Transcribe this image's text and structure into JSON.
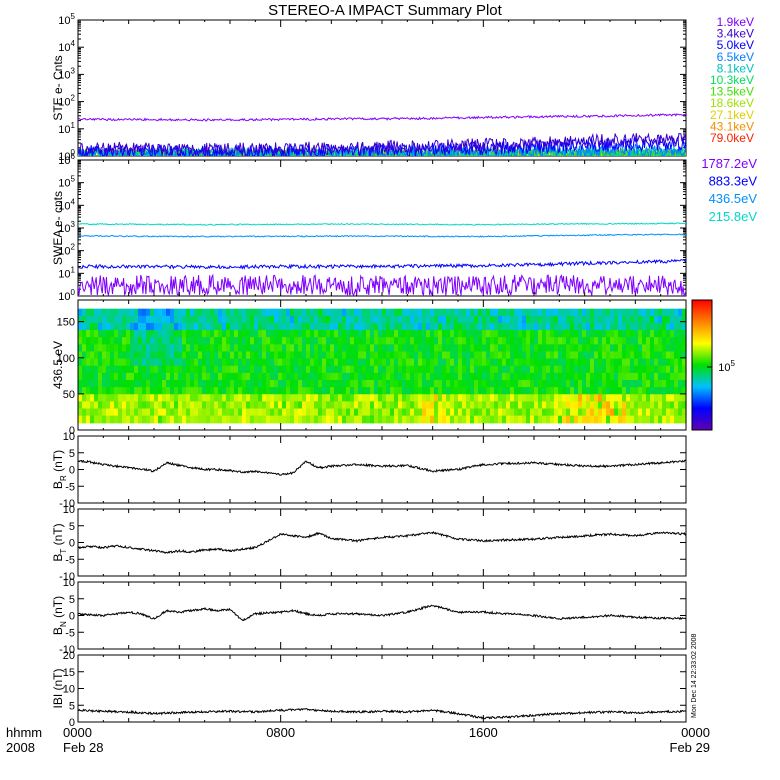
{
  "title": "STEREO-A IMPACT Summary Plot",
  "footer": {
    "left_line1": "hhmm",
    "left_line2": "2008",
    "stamp": "Mon Dec 14 22:33:02 2008"
  },
  "x_axis": {
    "ticks": [
      {
        "time": "0000",
        "date": "Feb 28",
        "hour": 0
      },
      {
        "time": "0800",
        "date": "",
        "hour": 8
      },
      {
        "time": "1600",
        "date": "",
        "hour": 16
      },
      {
        "time": "0000",
        "date": "Feb 29",
        "hour": 24
      }
    ]
  },
  "chart_data": [
    {
      "type": "line",
      "panel": "ste",
      "ylabel": "STE e- Cnts",
      "yscale": "log",
      "ylim": [
        1,
        100000
      ],
      "yticks": [
        "10^0",
        "10^1",
        "10^2",
        "10^3",
        "10^4",
        "10^5"
      ],
      "legend_placement": "right",
      "series": [
        {
          "name": "1.9keV",
          "color": "#7f00ff",
          "values": [
            22,
            22,
            21,
            22,
            23,
            24,
            26,
            28,
            30,
            33
          ]
        },
        {
          "name": "3.4keV",
          "color": "#3a00d0",
          "values": [
            1.8,
            1.9,
            1.7,
            1.8,
            2.0,
            2.2,
            2.5,
            3.0,
            3.8,
            4.5
          ]
        },
        {
          "name": "5.0keV",
          "color": "#0000ff",
          "values": [
            1.4,
            1.5,
            1.4,
            1.5,
            1.6,
            1.7,
            1.9,
            2.2,
            2.6,
            3.0
          ]
        },
        {
          "name": "6.5keV",
          "color": "#0080ff",
          "values": [
            1.2,
            1.2,
            1.2,
            1.2,
            1.3,
            1.3,
            1.4,
            1.5,
            1.6,
            1.7
          ]
        },
        {
          "name": "8.1keV",
          "color": "#00c0c0",
          "values": [
            1.1,
            1.1,
            1.1,
            1.1,
            1.1,
            1.2,
            1.2,
            1.2,
            1.3,
            1.3
          ]
        },
        {
          "name": "10.3keV",
          "color": "#00e060",
          "values": [
            1.05,
            1.05,
            1.05,
            1.05,
            1.05,
            1.1,
            1.1,
            1.1,
            1.1,
            1.1
          ]
        },
        {
          "name": "13.5keV",
          "color": "#40e000",
          "values": [
            1.02,
            1.02,
            1.02,
            1.02,
            1.02,
            1.02,
            1.02,
            1.02,
            1.02,
            1.02
          ]
        },
        {
          "name": "18.6keV",
          "color": "#a0e000",
          "values": [
            1.0,
            1.0,
            1.0,
            1.0,
            1.0,
            1.0,
            1.0,
            1.0,
            1.0,
            1.0
          ]
        },
        {
          "name": "27.1keV",
          "color": "#e0d000",
          "values": [
            1.0,
            1.0,
            1.0,
            1.0,
            1.0,
            1.0,
            1.0,
            1.0,
            1.0,
            1.0
          ]
        },
        {
          "name": "43.1keV",
          "color": "#f09000",
          "values": [
            1.0,
            1.0,
            1.0,
            1.0,
            1.0,
            1.0,
            1.0,
            1.0,
            1.0,
            1.0
          ]
        },
        {
          "name": "79.0keV",
          "color": "#ff2000",
          "values": [
            1.0,
            1.0,
            1.0,
            1.0,
            1.0,
            1.0,
            1.0,
            1.0,
            1.0,
            1.0
          ]
        }
      ]
    },
    {
      "type": "line",
      "panel": "swea",
      "ylabel": "SWEA e- cnts",
      "yscale": "log",
      "ylim": [
        1,
        1000000
      ],
      "yticks": [
        "10^0",
        "10^1",
        "10^2",
        "10^3",
        "10^4",
        "10^5",
        "10^6"
      ],
      "legend_placement": "right",
      "series": [
        {
          "name": "1787.2eV",
          "color": "#8000ff",
          "values": [
            3,
            3,
            3,
            3,
            3,
            3,
            3,
            3,
            3,
            3
          ]
        },
        {
          "name": "883.3eV",
          "color": "#0000ff",
          "values": [
            20,
            20,
            19,
            20,
            20,
            21,
            22,
            25,
            30,
            35
          ]
        },
        {
          "name": "436.5eV",
          "color": "#0090ff",
          "values": [
            450,
            430,
            420,
            430,
            440,
            430,
            420,
            460,
            500,
            520
          ]
        },
        {
          "name": "215.8eV",
          "color": "#00d8c8",
          "values": [
            1500,
            1450,
            1400,
            1450,
            1500,
            1450,
            1400,
            1500,
            1550,
            1600
          ]
        }
      ]
    },
    {
      "type": "heatmap",
      "panel": "pad",
      "ylabel": "436.5 eV",
      "ylim": [
        0,
        180
      ],
      "yticks": [
        0,
        50,
        100,
        150
      ],
      "colorbar_label": "10^5",
      "colorbar_colors": [
        "#6000b0",
        "#0000ff",
        "#00c0ff",
        "#00e000",
        "#ffff00",
        "#ff8000",
        "#ff0000"
      ]
    },
    {
      "type": "line",
      "panel": "br",
      "ylabel": "B_R (nT)",
      "ylim": [
        -10,
        10
      ],
      "yticks": [
        -10,
        -5,
        0,
        5,
        10
      ],
      "series": [
        {
          "name": "",
          "color": "#000000",
          "x": [
            0,
            0.5,
            1,
            1.5,
            2,
            2.5,
            3,
            3.5,
            4,
            4.5,
            5,
            5.5,
            6,
            6.5,
            7,
            7.5,
            8,
            8.5,
            9,
            9.5,
            10,
            11,
            12,
            13,
            14,
            15,
            16,
            17,
            18,
            19,
            20,
            21,
            22,
            23,
            24
          ],
          "values": [
            2.5,
            2.2,
            1.5,
            1.0,
            0.5,
            0.2,
            -0.5,
            2.0,
            1.2,
            0.5,
            0.0,
            0.0,
            -0.3,
            -0.8,
            -0.5,
            -1.0,
            -1.5,
            -1.0,
            2.5,
            0.5,
            1.0,
            1.5,
            1.0,
            1.2,
            -0.5,
            0.0,
            1.5,
            1.8,
            2.0,
            1.5,
            1.0,
            1.0,
            1.5,
            2.0,
            2.5
          ]
        }
      ]
    },
    {
      "type": "line",
      "panel": "bt",
      "ylabel": "B_T (nT)",
      "ylim": [
        -10,
        10
      ],
      "yticks": [
        -10,
        -5,
        0,
        5,
        10
      ],
      "series": [
        {
          "name": "",
          "color": "#000000",
          "x": [
            0,
            0.5,
            1,
            1.5,
            2,
            2.5,
            3,
            3.5,
            4,
            4.5,
            5,
            5.5,
            6,
            6.5,
            7,
            7.5,
            8,
            8.5,
            9,
            9.5,
            10,
            11,
            12,
            13,
            14,
            15,
            16,
            17,
            18,
            19,
            20,
            21,
            22,
            23,
            24
          ],
          "values": [
            -1.5,
            -1.2,
            -1.5,
            -1.0,
            -1.5,
            -2.0,
            -2.5,
            -3.0,
            -2.5,
            -2.8,
            -2.2,
            -2.0,
            -2.5,
            -2.0,
            -1.5,
            0.5,
            2.5,
            2.0,
            1.5,
            2.8,
            1.2,
            0.5,
            1.5,
            2.0,
            3.0,
            1.0,
            0.5,
            0.8,
            1.0,
            1.5,
            2.0,
            2.5,
            2.0,
            3.0,
            2.5
          ]
        }
      ]
    },
    {
      "type": "line",
      "panel": "bn",
      "ylabel": "B_N (nT)",
      "ylim": [
        -10,
        10
      ],
      "yticks": [
        -10,
        -5,
        0,
        5,
        10
      ],
      "series": [
        {
          "name": "",
          "color": "#000000",
          "x": [
            0,
            0.5,
            1,
            1.5,
            2,
            2.5,
            3,
            3.5,
            4,
            4.5,
            5,
            5.5,
            6,
            6.5,
            7,
            7.5,
            8,
            8.5,
            9,
            9.5,
            10,
            11,
            12,
            13,
            14,
            15,
            16,
            17,
            18,
            19,
            20,
            21,
            22,
            23,
            24
          ],
          "values": [
            0.5,
            0.2,
            0.0,
            0.5,
            1.0,
            0.5,
            -1.0,
            1.5,
            1.0,
            1.5,
            2.0,
            1.5,
            1.8,
            -1.5,
            0.5,
            0.8,
            1.0,
            1.5,
            0.5,
            0.0,
            0.5,
            0.5,
            0.0,
            1.0,
            3.0,
            1.0,
            1.0,
            0.5,
            0.0,
            -1.0,
            -0.5,
            0.0,
            -0.5,
            -0.8,
            -1.0
          ]
        }
      ]
    },
    {
      "type": "line",
      "panel": "bmag",
      "ylabel": "IBI (nT)",
      "ylim": [
        0,
        20
      ],
      "yticks": [
        0,
        5,
        10,
        15,
        20
      ],
      "series": [
        {
          "name": "",
          "color": "#000000",
          "x": [
            0,
            1,
            2,
            3,
            4,
            5,
            6,
            7,
            8,
            9,
            10,
            11,
            12,
            13,
            14,
            15,
            16,
            17,
            18,
            19,
            20,
            21,
            22,
            23,
            24
          ],
          "values": [
            3.5,
            3.2,
            3.0,
            2.5,
            2.8,
            3.0,
            3.2,
            3.0,
            3.5,
            3.8,
            3.2,
            3.0,
            3.2,
            3.0,
            3.5,
            2.5,
            1.2,
            1.5,
            2.0,
            2.5,
            2.8,
            3.0,
            2.8,
            3.0,
            3.2
          ]
        }
      ]
    }
  ]
}
